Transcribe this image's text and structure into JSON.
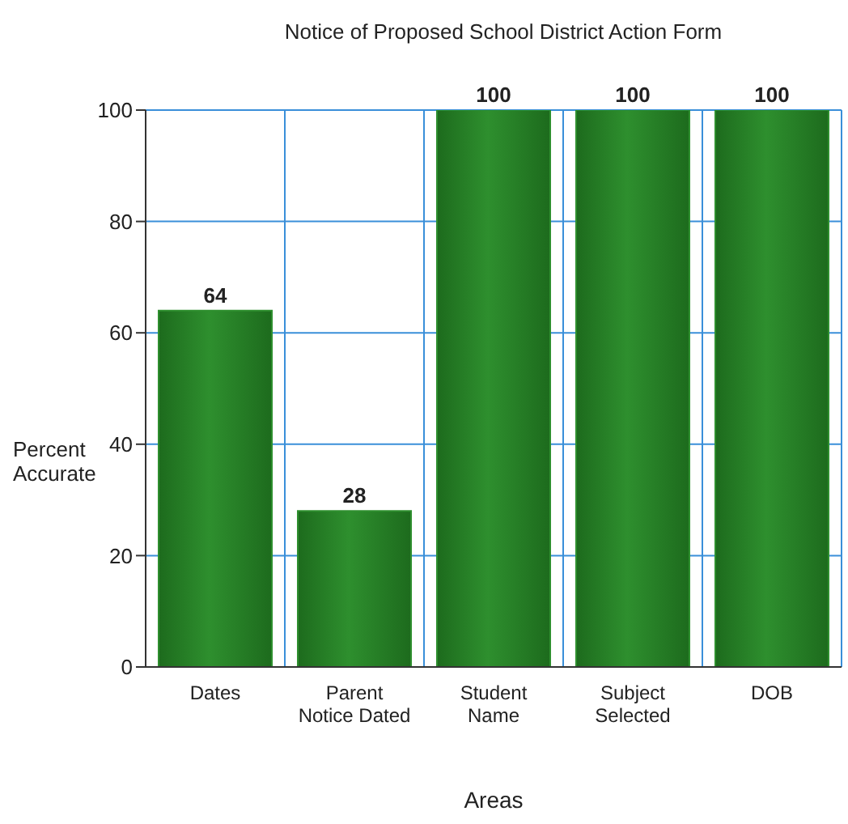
{
  "chart_data": {
    "type": "bar",
    "title": "Notice of Proposed School District Action Form",
    "xlabel": "Areas",
    "ylabel": "Percent\nAccurate",
    "categories": [
      "Dates",
      "Parent\nNotice Dated",
      "Student\nName",
      "Subject\nSelected",
      "DOB"
    ],
    "values": [
      64,
      28,
      100,
      100,
      100
    ],
    "color": "#2e8f2e",
    "ylim": [
      0,
      100
    ],
    "yticks": [
      0,
      20,
      40,
      60,
      80,
      100
    ],
    "grid": true,
    "data_labels": true
  }
}
